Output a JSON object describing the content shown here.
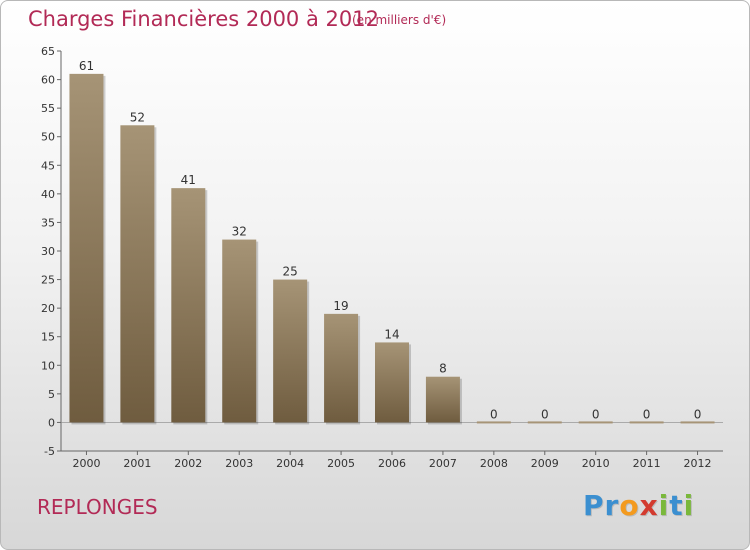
{
  "header": {
    "title": "Charges Financières 2000 à 2012",
    "subtitle": "(en milliers d'€)"
  },
  "footer": {
    "place": "REPLONGES",
    "logo": {
      "letters": [
        {
          "ch": "P",
          "color": "#3b8fd0"
        },
        {
          "ch": "r",
          "color": "#3b8fd0"
        },
        {
          "ch": "o",
          "color": "#f39a1e"
        },
        {
          "ch": "x",
          "color": "#d33b2f"
        },
        {
          "ch": "i",
          "color": "#7ab83b"
        },
        {
          "ch": "t",
          "color": "#3b8fd0"
        },
        {
          "ch": "i",
          "color": "#7ab83b"
        }
      ]
    }
  },
  "chart_data": {
    "type": "bar",
    "categories": [
      "2000",
      "2001",
      "2002",
      "2003",
      "2004",
      "2005",
      "2006",
      "2007",
      "2008",
      "2009",
      "2010",
      "2011",
      "2012"
    ],
    "values": [
      61,
      52,
      41,
      32,
      25,
      19,
      14,
      8,
      0,
      0,
      0,
      0,
      0
    ],
    "value_labels": [
      "61",
      "52",
      "41",
      "32",
      "25",
      "19",
      "14",
      "8",
      "0",
      "0",
      "0",
      "0",
      "0"
    ],
    "ylim": [
      -5,
      65
    ],
    "yticks": [
      -5,
      0,
      5,
      10,
      15,
      20,
      25,
      30,
      35,
      40,
      45,
      50,
      55,
      60,
      65
    ],
    "grid": false,
    "bar_color_top": "#a69476",
    "bar_color_bottom": "#6f5c3f"
  }
}
